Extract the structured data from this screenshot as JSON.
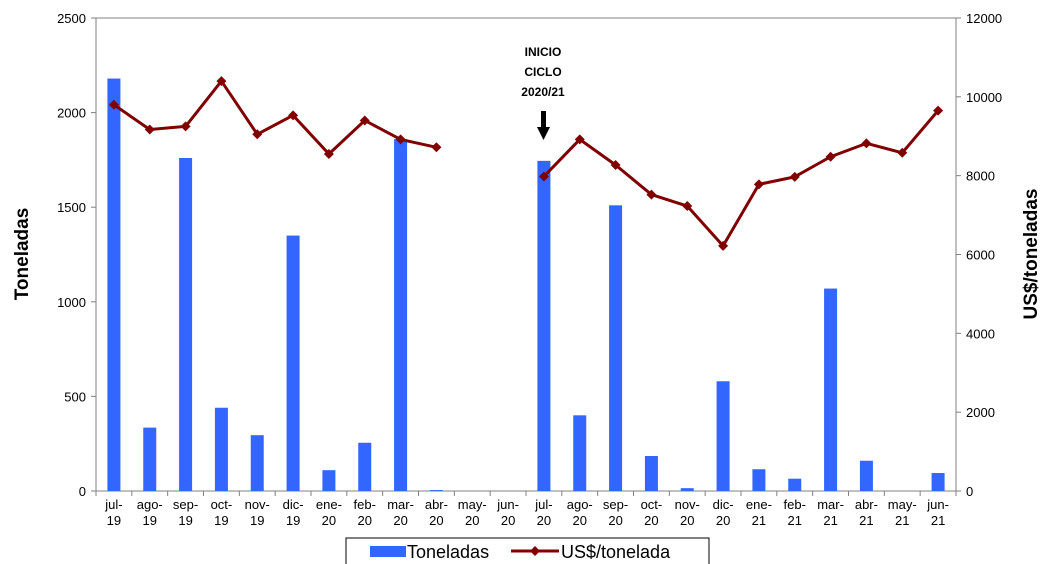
{
  "chart_data": {
    "type": "bar",
    "categories": [
      "jul-19",
      "ago-19",
      "sep-19",
      "oct-19",
      "nov-19",
      "dic-19",
      "ene-20",
      "feb-20",
      "mar-20",
      "abr-20",
      "may-20",
      "jun-20",
      "jul-20",
      "ago-20",
      "sep-20",
      "oct-20",
      "nov-20",
      "dic-20",
      "ene-21",
      "feb-21",
      "mar-21",
      "abr-21",
      "may-21",
      "jun-21"
    ],
    "category_lines": [
      [
        "jul-",
        "19"
      ],
      [
        "ago-",
        "19"
      ],
      [
        "sep-",
        "19"
      ],
      [
        "oct-",
        "19"
      ],
      [
        "nov-",
        "19"
      ],
      [
        "dic-",
        "19"
      ],
      [
        "ene-",
        "20"
      ],
      [
        "feb-",
        "20"
      ],
      [
        "mar-",
        "20"
      ],
      [
        "abr-",
        "20"
      ],
      [
        "may-",
        "20"
      ],
      [
        "jun-",
        "20"
      ],
      [
        "jul-",
        "20"
      ],
      [
        "ago-",
        "20"
      ],
      [
        "sep-",
        "20"
      ],
      [
        "oct-",
        "20"
      ],
      [
        "nov-",
        "20"
      ],
      [
        "dic-",
        "20"
      ],
      [
        "ene-",
        "21"
      ],
      [
        "feb-",
        "21"
      ],
      [
        "mar-",
        "21"
      ],
      [
        "abr-",
        "21"
      ],
      [
        "may-",
        "21"
      ],
      [
        "jun-",
        "21"
      ]
    ],
    "series": [
      {
        "name": "Toneladas",
        "type": "bar",
        "axis": "left",
        "color": "#3366ff",
        "values": [
          2180,
          335,
          1760,
          440,
          295,
          1350,
          110,
          255,
          1860,
          5,
          0,
          0,
          1745,
          400,
          1510,
          185,
          15,
          580,
          115,
          65,
          1070,
          160,
          0,
          95
        ]
      },
      {
        "name": "US$/tonelada",
        "type": "line",
        "axis": "right",
        "color": "#800000",
        "values": [
          9800,
          9170,
          9250,
          10400,
          9050,
          9530,
          8550,
          9400,
          8920,
          8720,
          null,
          null,
          7980,
          8920,
          8270,
          7520,
          7230,
          6220,
          7780,
          7970,
          8480,
          8820,
          8580,
          9650
        ]
      }
    ],
    "ylabel": "Toneladas",
    "y2label": "US$/toneladas",
    "ylim": [
      0,
      2500
    ],
    "y2lim": [
      0,
      12000
    ],
    "yticks": [
      0,
      500,
      1000,
      1500,
      2000,
      2500
    ],
    "y2ticks": [
      0,
      2000,
      4000,
      6000,
      8000,
      10000,
      12000
    ],
    "annotation": {
      "lines": [
        "INICIO",
        "CICLO",
        "2020/21"
      ],
      "category": "jul-20",
      "marker": "down-arrow"
    },
    "legend": {
      "position": "bottom",
      "entries": [
        "Toneladas",
        "US$/tonelada"
      ]
    }
  }
}
